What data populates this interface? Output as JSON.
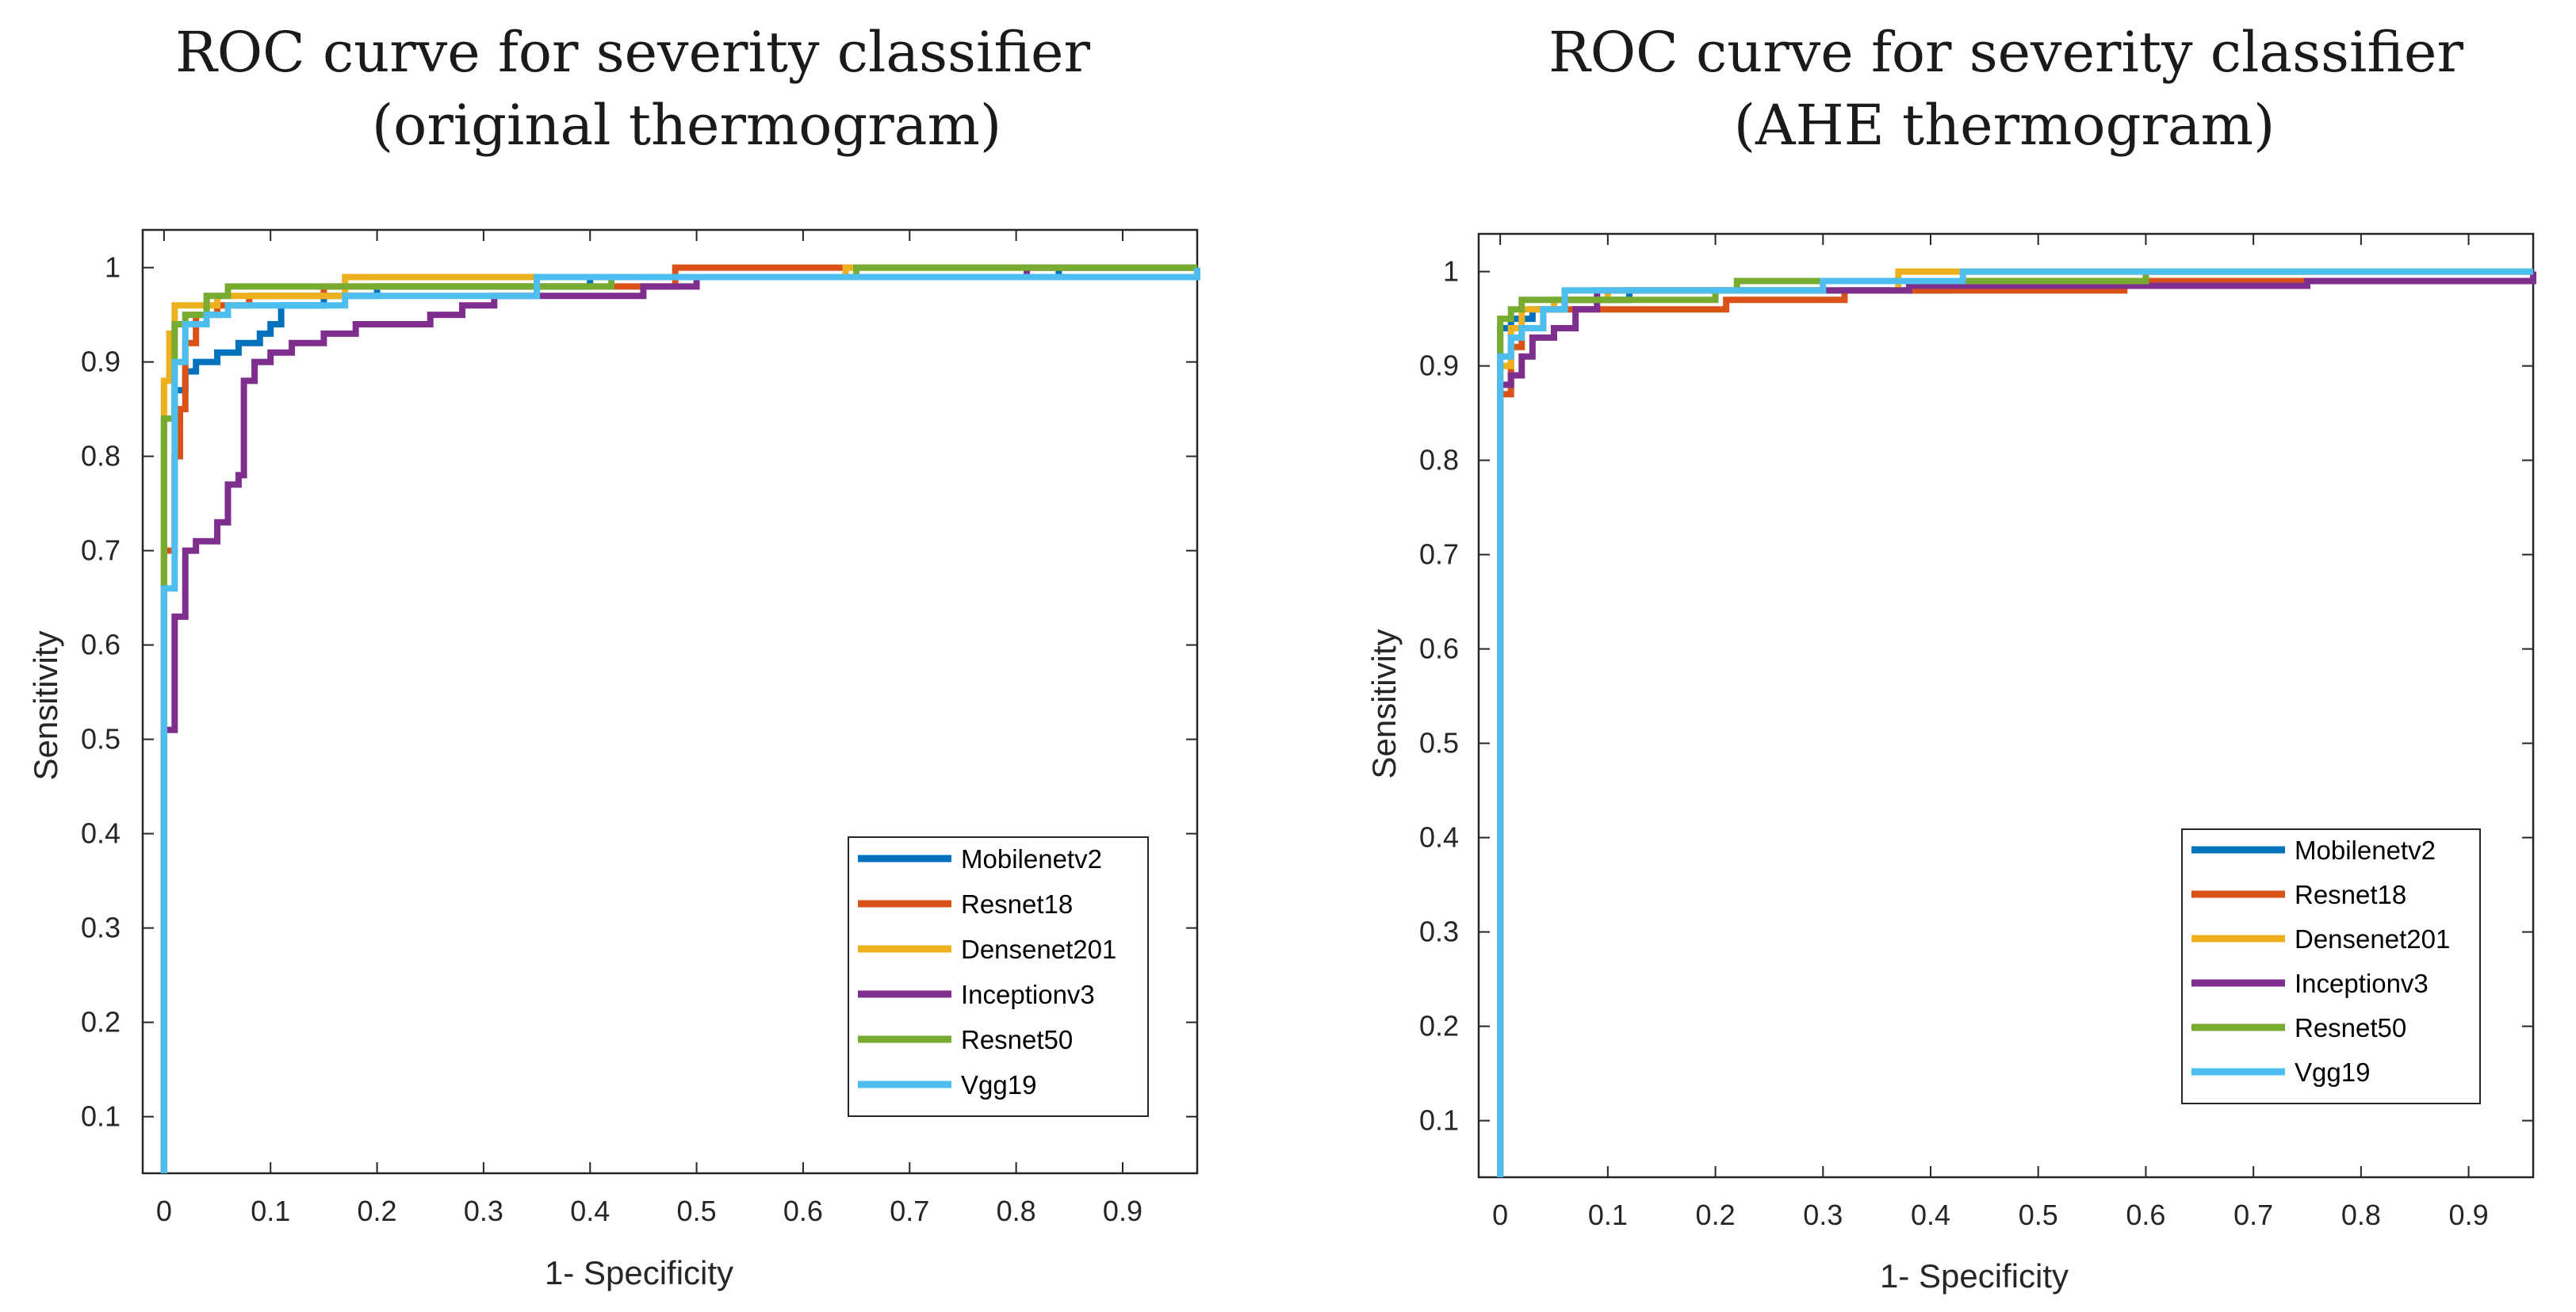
{
  "colors": {
    "Mobilenetv2": "#0072BD",
    "Resnet18": "#D95319",
    "Densenet201": "#EDB120",
    "Inceptionv3": "#7E2F8E",
    "Resnet50": "#77AC30",
    "Vgg19": "#4DBEEE"
  },
  "chart_data": [
    {
      "type": "line",
      "title_line1": "ROC curve for severity classifier",
      "title_line2": "(original thermogram)",
      "xlabel": "1- Specificity",
      "ylabel": "Sensitivity",
      "xlim": [
        -0.02,
        0.97
      ],
      "ylim": [
        0.04,
        1.04
      ],
      "x_ticks": [
        "0",
        "0.1",
        "0.2",
        "0.3",
        "0.4",
        "0.5",
        "0.6",
        "0.7",
        "0.8",
        "0.9"
      ],
      "y_ticks": [
        "0.1",
        "0.2",
        "0.3",
        "0.4",
        "0.5",
        "0.6",
        "0.7",
        "0.8",
        "0.9",
        "1"
      ],
      "legend_position": "bottom-right",
      "series": [
        {
          "name": "Mobilenetv2",
          "points": [
            [
              0,
              0.04
            ],
            [
              0,
              0.84
            ],
            [
              0.01,
              0.85
            ],
            [
              0.01,
              0.87
            ],
            [
              0.02,
              0.89
            ],
            [
              0.03,
              0.9
            ],
            [
              0.05,
              0.91
            ],
            [
              0.07,
              0.92
            ],
            [
              0.09,
              0.93
            ],
            [
              0.1,
              0.94
            ],
            [
              0.11,
              0.96
            ],
            [
              0.15,
              0.97
            ],
            [
              0.2,
              0.98
            ],
            [
              0.4,
              0.99
            ],
            [
              0.84,
              1.0
            ],
            [
              0.97,
              1.0
            ]
          ]
        },
        {
          "name": "Resnet18",
          "points": [
            [
              0,
              0.04
            ],
            [
              0,
              0.7
            ],
            [
              0.01,
              0.8
            ],
            [
              0.015,
              0.85
            ],
            [
              0.02,
              0.92
            ],
            [
              0.03,
              0.95
            ],
            [
              0.05,
              0.96
            ],
            [
              0.08,
              0.97
            ],
            [
              0.15,
              0.98
            ],
            [
              0.48,
              1.0
            ],
            [
              0.97,
              1.0
            ]
          ]
        },
        {
          "name": "Densenet201",
          "points": [
            [
              0,
              0.04
            ],
            [
              0,
              0.88
            ],
            [
              0.005,
              0.93
            ],
            [
              0.01,
              0.96
            ],
            [
              0.05,
              0.97
            ],
            [
              0.17,
              0.99
            ],
            [
              0.3,
              0.99
            ],
            [
              0.64,
              1.0
            ],
            [
              0.97,
              1.0
            ]
          ]
        },
        {
          "name": "Inceptionv3",
          "points": [
            [
              0,
              0.04
            ],
            [
              0,
              0.51
            ],
            [
              0.01,
              0.63
            ],
            [
              0.02,
              0.7
            ],
            [
              0.03,
              0.71
            ],
            [
              0.05,
              0.73
            ],
            [
              0.06,
              0.77
            ],
            [
              0.07,
              0.78
            ],
            [
              0.075,
              0.88
            ],
            [
              0.085,
              0.9
            ],
            [
              0.1,
              0.91
            ],
            [
              0.12,
              0.92
            ],
            [
              0.15,
              0.93
            ],
            [
              0.18,
              0.94
            ],
            [
              0.25,
              0.95
            ],
            [
              0.28,
              0.96
            ],
            [
              0.31,
              0.97
            ],
            [
              0.45,
              0.98
            ],
            [
              0.5,
              0.99
            ],
            [
              0.81,
              1.0
            ],
            [
              0.97,
              1.0
            ]
          ]
        },
        {
          "name": "Resnet50",
          "points": [
            [
              0,
              0.04
            ],
            [
              0,
              0.84
            ],
            [
              0.01,
              0.94
            ],
            [
              0.02,
              0.95
            ],
            [
              0.04,
              0.97
            ],
            [
              0.06,
              0.98
            ],
            [
              0.1,
              0.98
            ],
            [
              0.42,
              0.99
            ],
            [
              0.65,
              1.0
            ],
            [
              0.97,
              1.0
            ]
          ]
        },
        {
          "name": "Vgg19",
          "points": [
            [
              0,
              0.04
            ],
            [
              0,
              0.66
            ],
            [
              0.01,
              0.9
            ],
            [
              0.02,
              0.94
            ],
            [
              0.04,
              0.95
            ],
            [
              0.06,
              0.96
            ],
            [
              0.17,
              0.97
            ],
            [
              0.35,
              0.99
            ],
            [
              0.97,
              1.0
            ]
          ]
        }
      ]
    },
    {
      "type": "line",
      "title_line1": "ROC curve for severity classifier",
      "title_line2": "(AHE thermogram)",
      "xlabel": "1- Specificity",
      "ylabel": "Sensitivity",
      "xlim": [
        -0.02,
        0.96
      ],
      "ylim": [
        0.04,
        1.04
      ],
      "x_ticks": [
        "0",
        "0.1",
        "0.2",
        "0.3",
        "0.4",
        "0.5",
        "0.6",
        "0.7",
        "0.8",
        "0.9"
      ],
      "y_ticks": [
        "0.1",
        "0.2",
        "0.3",
        "0.4",
        "0.5",
        "0.6",
        "0.7",
        "0.8",
        "0.9",
        "1"
      ],
      "legend_position": "bottom-right",
      "series": [
        {
          "name": "Mobilenetv2",
          "points": [
            [
              0,
              0.04
            ],
            [
              0,
              0.94
            ],
            [
              0.01,
              0.95
            ],
            [
              0.03,
              0.96
            ],
            [
              0.06,
              0.97
            ],
            [
              0.12,
              0.98
            ],
            [
              0.2,
              0.98
            ],
            [
              0.42,
              0.99
            ],
            [
              0.96,
              1.0
            ]
          ]
        },
        {
          "name": "Resnet18",
          "points": [
            [
              0,
              0.04
            ],
            [
              0,
              0.87
            ],
            [
              0.01,
              0.92
            ],
            [
              0.02,
              0.94
            ],
            [
              0.04,
              0.96
            ],
            [
              0.21,
              0.97
            ],
            [
              0.32,
              0.98
            ],
            [
              0.58,
              0.99
            ],
            [
              0.96,
              1.0
            ]
          ]
        },
        {
          "name": "Densenet201",
          "points": [
            [
              0,
              0.04
            ],
            [
              0,
              0.9
            ],
            [
              0.01,
              0.94
            ],
            [
              0.02,
              0.96
            ],
            [
              0.05,
              0.97
            ],
            [
              0.1,
              0.98
            ],
            [
              0.37,
              1.0
            ],
            [
              0.96,
              1.0
            ]
          ]
        },
        {
          "name": "Inceptionv3",
          "points": [
            [
              0,
              0.04
            ],
            [
              0,
              0.88
            ],
            [
              0.01,
              0.89
            ],
            [
              0.02,
              0.91
            ],
            [
              0.03,
              0.93
            ],
            [
              0.05,
              0.94
            ],
            [
              0.07,
              0.96
            ],
            [
              0.09,
              0.98
            ],
            [
              0.38,
              0.985
            ],
            [
              0.75,
              0.99
            ],
            [
              0.96,
              1.0
            ]
          ]
        },
        {
          "name": "Resnet50",
          "points": [
            [
              0,
              0.04
            ],
            [
              0,
              0.95
            ],
            [
              0.01,
              0.96
            ],
            [
              0.02,
              0.97
            ],
            [
              0.08,
              0.97
            ],
            [
              0.2,
              0.98
            ],
            [
              0.22,
              0.99
            ],
            [
              0.6,
              1.0
            ],
            [
              0.96,
              1.0
            ]
          ]
        },
        {
          "name": "Vgg19",
          "points": [
            [
              0,
              0.04
            ],
            [
              0,
              0.91
            ],
            [
              0.01,
              0.93
            ],
            [
              0.02,
              0.94
            ],
            [
              0.04,
              0.96
            ],
            [
              0.06,
              0.98
            ],
            [
              0.3,
              0.99
            ],
            [
              0.43,
              1.0
            ],
            [
              0.96,
              1.0
            ]
          ]
        }
      ]
    }
  ]
}
